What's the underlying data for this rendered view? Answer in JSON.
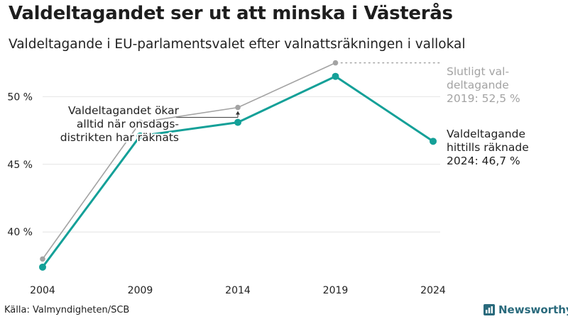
{
  "header": {
    "title": "Valdeltagandet ser ut att minska i Västerås",
    "subtitle": "Valdeltagande i EU-parlamentsvalet efter valnattsräkningen i vallokal"
  },
  "footer": {
    "source": "Källa: Valmyndigheten/SCB",
    "brand": "Newsworthy"
  },
  "colors": {
    "teal": "#14a098",
    "gray": "#a3a3a3",
    "grid": "#e4e4e4",
    "brand": "#2a6a7c"
  },
  "chart_data": {
    "type": "line",
    "x": [
      2004,
      2009,
      2014,
      2019,
      2024
    ],
    "x_tick_labels": [
      "2004",
      "2009",
      "2014",
      "2019",
      "2024"
    ],
    "y_ticks": [
      40,
      45,
      50
    ],
    "y_tick_labels": [
      "40 %",
      "45 %",
      "50 %"
    ],
    "ylim": [
      36.5,
      54
    ],
    "series": [
      {
        "key": "final",
        "values": [
          38.0,
          48.1,
          49.2,
          52.5,
          null
        ]
      },
      {
        "key": "election_night",
        "values": [
          37.4,
          47.1,
          48.1,
          51.5,
          46.7
        ]
      }
    ],
    "annotations": {
      "gap": [
        "Valdeltagandet ökar",
        "alltid när onsdags-",
        "distrikten har räknats"
      ],
      "final": [
        "Slutligt val-",
        "deltagande",
        "2019: 52,5 %"
      ],
      "current": [
        "Valdeltagande",
        "hittills räknade",
        "2024: 46,7 %"
      ]
    }
  }
}
